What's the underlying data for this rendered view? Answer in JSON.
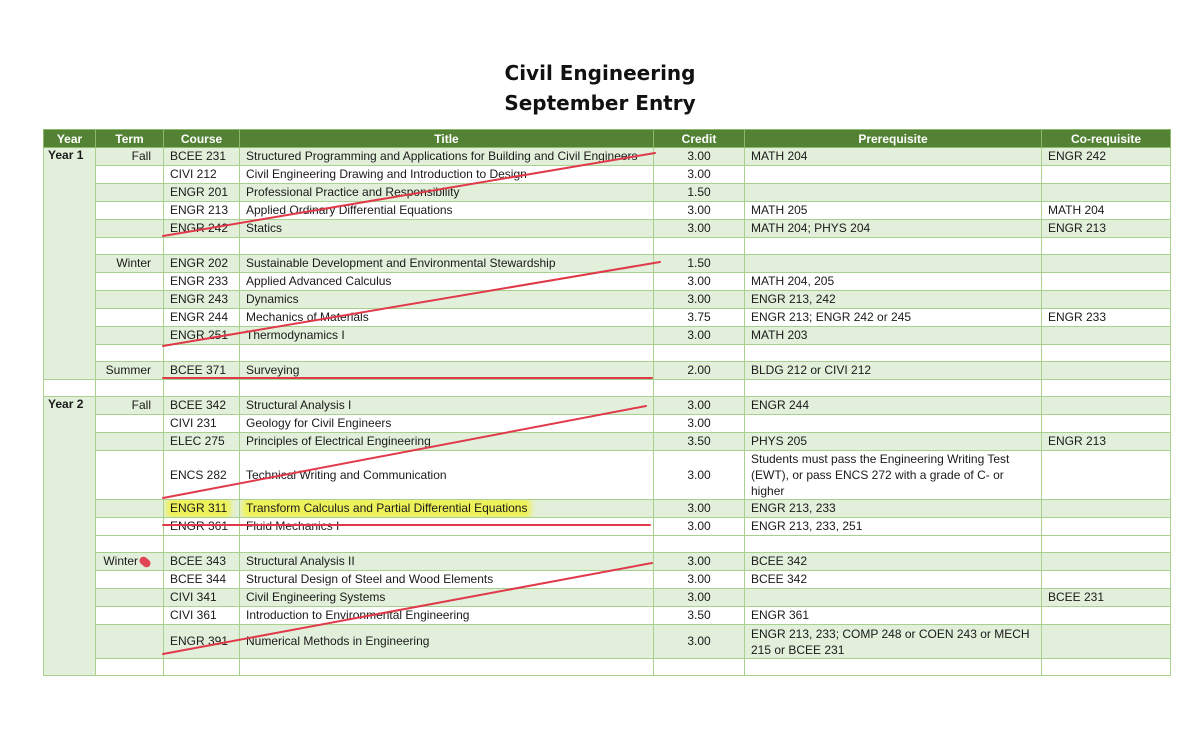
{
  "title": {
    "line1": "Civil Engineering",
    "line2": "September Entry"
  },
  "columns": [
    "Year",
    "Term",
    "Course",
    "Title",
    "Credit",
    "Prerequisite",
    "Co-requisite"
  ],
  "years": {
    "y1": "Year 1",
    "y2": "Year 2"
  },
  "terms": {
    "fall": "Fall",
    "winter": "Winter",
    "summer": "Summer"
  },
  "rows": [
    {
      "course": "BCEE 231",
      "title": "Structured Programming and Applications for Building and Civil Engineers",
      "credit": "3.00",
      "prereq": "MATH 204",
      "coreq": "ENGR 242"
    },
    {
      "course": "CIVI 212",
      "title": "Civil Engineering Drawing and Introduction to Design",
      "credit": "3.00",
      "prereq": "",
      "coreq": ""
    },
    {
      "course": "ENGR 201",
      "title": "Professional Practice and Responsibility",
      "credit": "1.50",
      "prereq": "",
      "coreq": ""
    },
    {
      "course": "ENGR 213",
      "title": "Applied Ordinary Differential Equations",
      "credit": "3.00",
      "prereq": "MATH 205",
      "coreq": "MATH 204"
    },
    {
      "course": "ENGR 242",
      "title": "Statics",
      "credit": "3.00",
      "prereq": "MATH 204; PHYS 204",
      "coreq": "ENGR 213"
    },
    {
      "course": "ENGR 202",
      "title": "Sustainable Development and Environmental Stewardship",
      "credit": "1.50",
      "prereq": "",
      "coreq": ""
    },
    {
      "course": "ENGR 233",
      "title": "Applied Advanced Calculus",
      "credit": "3.00",
      "prereq": "MATH 204, 205",
      "coreq": ""
    },
    {
      "course": "ENGR 243",
      "title": "Dynamics",
      "credit": "3.00",
      "prereq": "ENGR 213, 242",
      "coreq": ""
    },
    {
      "course": "ENGR 244",
      "title": "Mechanics of Materials",
      "credit": "3.75",
      "prereq": "ENGR 213; ENGR 242 or 245",
      "coreq": "ENGR 233"
    },
    {
      "course": "ENGR 251",
      "title": "Thermodynamics I",
      "credit": "3.00",
      "prereq": "MATH 203",
      "coreq": ""
    },
    {
      "course": "BCEE 371",
      "title": "Surveying",
      "credit": "2.00",
      "prereq": "BLDG 212 or CIVI 212",
      "coreq": ""
    },
    {
      "course": "BCEE 342",
      "title": "Structural Analysis I",
      "credit": "3.00",
      "prereq": "ENGR 244",
      "coreq": ""
    },
    {
      "course": "CIVI 231",
      "title": "Geology for Civil Engineers",
      "credit": "3.00",
      "prereq": "",
      "coreq": ""
    },
    {
      "course": "ELEC 275",
      "title": "Principles of Electrical Engineering",
      "credit": "3.50",
      "prereq": "PHYS 205",
      "coreq": "ENGR 213"
    },
    {
      "course": "ENCS 282",
      "title": "Technical Writing and Communication",
      "credit": "3.00",
      "prereq": "Students must pass the Engineering Writing Test (EWT), or pass ENCS 272 with a grade of C- or higher",
      "coreq": ""
    },
    {
      "course": "ENGR 311",
      "title": "Transform Calculus and Partial Differential Equations",
      "credit": "3.00",
      "prereq": "ENGR 213, 233",
      "coreq": ""
    },
    {
      "course": "ENGR 361",
      "title": "Fluid Mechanics I",
      "credit": "3.00",
      "prereq": "ENGR 213, 233, 251",
      "coreq": ""
    },
    {
      "course": "BCEE 343",
      "title": "Structural Analysis II",
      "credit": "3.00",
      "prereq": "BCEE 342",
      "coreq": ""
    },
    {
      "course": "BCEE 344",
      "title": "Structural Design of Steel and Wood Elements",
      "credit": "3.00",
      "prereq": "BCEE 342",
      "coreq": ""
    },
    {
      "course": "CIVI 341",
      "title": "Civil Engineering Systems",
      "credit": "3.00",
      "prereq": "",
      "coreq": "BCEE 231"
    },
    {
      "course": "CIVI 361",
      "title": "Introduction to Environmental Engineering",
      "credit": "3.50",
      "prereq": "ENGR 361",
      "coreq": ""
    },
    {
      "course": "ENGR 391",
      "title": "Numerical Methods in Engineering",
      "credit": "3.00",
      "prereq": "ENGR 213, 233; COMP 248 or COEN 243 or MECH 215 or BCEE 231",
      "coreq": ""
    }
  ],
  "annotation_colors": {
    "strike": "#e03a4a",
    "highlight": "#eef25a"
  }
}
